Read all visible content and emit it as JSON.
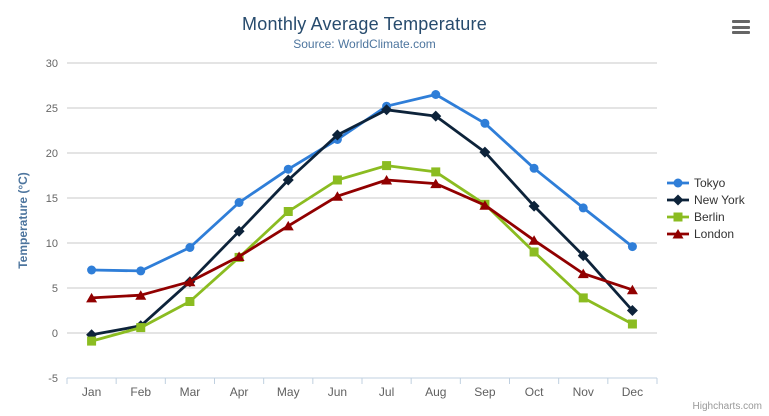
{
  "chart_data": {
    "type": "line",
    "title": "Monthly Average Temperature",
    "subtitle": "Source: WorldClimate.com",
    "categories": [
      "Jan",
      "Feb",
      "Mar",
      "Apr",
      "May",
      "Jun",
      "Jul",
      "Aug",
      "Sep",
      "Oct",
      "Nov",
      "Dec"
    ],
    "xlabel": "",
    "ylabel": "Temperature (°C)",
    "ylim": [
      -5,
      30
    ],
    "ytick_interval": 5,
    "grid": true,
    "legend_position": "right",
    "series": [
      {
        "name": "Tokyo",
        "color": "#2f7ed8",
        "marker": "circle",
        "values": [
          7.0,
          6.9,
          9.5,
          14.5,
          18.2,
          21.5,
          25.2,
          26.5,
          23.3,
          18.3,
          13.9,
          9.6
        ]
      },
      {
        "name": "New York",
        "color": "#0d233a",
        "marker": "diamond",
        "values": [
          -0.2,
          0.8,
          5.7,
          11.3,
          17.0,
          22.0,
          24.8,
          24.1,
          20.1,
          14.1,
          8.6,
          2.5
        ]
      },
      {
        "name": "Berlin",
        "color": "#8bbc21",
        "marker": "square",
        "values": [
          -0.9,
          0.6,
          3.5,
          8.4,
          13.5,
          17.0,
          18.6,
          17.9,
          14.3,
          9.0,
          3.9,
          1.0
        ]
      },
      {
        "name": "London",
        "color": "#910000",
        "marker": "triangle",
        "values": [
          3.9,
          4.2,
          5.7,
          8.5,
          11.9,
          15.2,
          17.0,
          16.6,
          14.2,
          10.3,
          6.6,
          4.8
        ]
      }
    ]
  },
  "export_menu": {
    "icon": "hamburger-menu-icon"
  },
  "credits": {
    "label": "Highcharts.com"
  }
}
